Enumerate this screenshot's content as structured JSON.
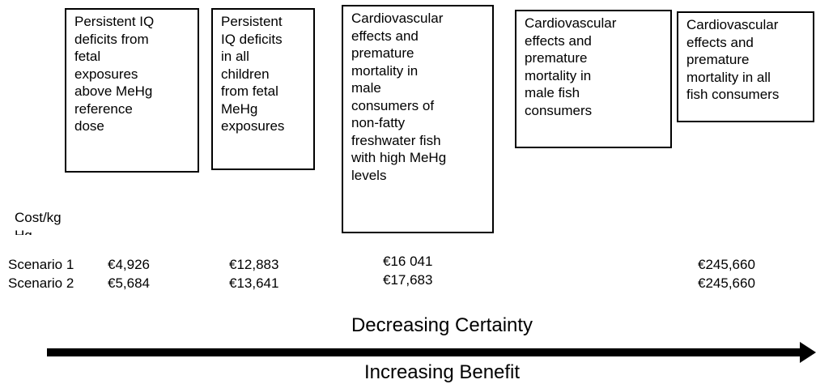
{
  "boxes": [
    {
      "lines": [
        "Persistent IQ",
        "deficits from",
        "fetal",
        "exposures",
        "above MeHg",
        "reference",
        "dose"
      ]
    },
    {
      "lines": [
        "Persistent",
        "IQ deficits",
        "in all",
        "children",
        "from fetal",
        "MeHg",
        "exposures"
      ]
    },
    {
      "lines": [
        "Cardiovascular",
        "effects and",
        "premature",
        "mortality in",
        "male",
        "consumers of",
        "non-fatty",
        "freshwater fish",
        "with high MeHg",
        "levels"
      ]
    },
    {
      "lines": [
        "Cardiovascular",
        "effects and",
        "premature",
        "mortality in",
        "male fish",
        "consumers"
      ]
    },
    {
      "lines": [
        "Cardiovascular",
        "effects and",
        "premature",
        "mortality in all",
        "fish consumers"
      ]
    }
  ],
  "cost_label": "Cost/kg Hg",
  "scenarios": [
    {
      "label": "Scenario 1",
      "values": [
        "€4,926",
        "€12,883",
        "€16 041",
        "€245,660"
      ]
    },
    {
      "label": "Scenario 2",
      "values": [
        "€5,684",
        "€13,641",
        "€17,683",
        "€245,660"
      ]
    }
  ],
  "top_label": "Decreasing Certainty",
  "bottom_label": "Increasing Benefit"
}
